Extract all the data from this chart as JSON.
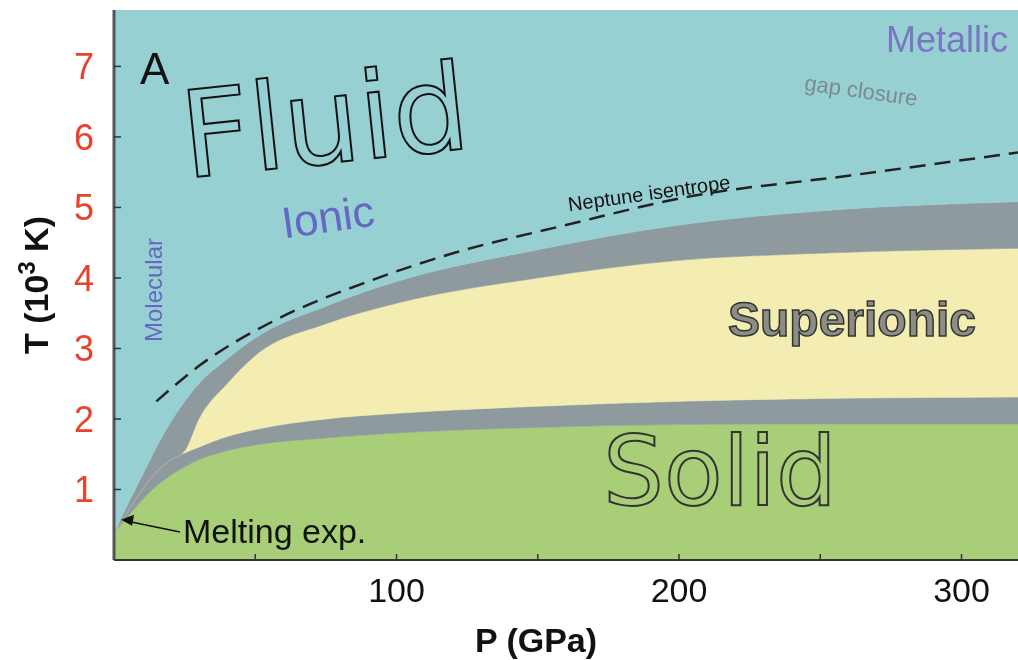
{
  "chart_data": {
    "type": "area",
    "stacked": true,
    "xlabel": "P (GPa)",
    "ylabel": "T (10$^{3}$ K)",
    "x": [
      0,
      5,
      10,
      15,
      20,
      25,
      30,
      40,
      50,
      75,
      100,
      150,
      200,
      250,
      320
    ],
    "series": [
      {
        "color": "#a8cf78",
        "values": [
          0.38,
          0.62,
          0.85,
          1.05,
          1.2,
          1.32,
          1.42,
          1.55,
          1.63,
          1.73,
          1.8,
          1.88,
          1.92,
          1.93,
          1.93
        ]
      },
      {
        "color": "#8f9a9e",
        "values": [
          0,
          0.08,
          0.15,
          0.2,
          0.22,
          0.2,
          0.18,
          0.2,
          0.22,
          0.27,
          0.28,
          0.3,
          0.33,
          0.36,
          0.38
        ]
      },
      {
        "color": "#f3edb2",
        "values": [
          0,
          0,
          0,
          0,
          0,
          0.03,
          0.4,
          0.75,
          1.05,
          1.35,
          1.56,
          1.82,
          2.0,
          2.06,
          2.11
        ]
      },
      {
        "color": "#8f9a9e",
        "values": [
          0,
          0.1,
          0.2,
          0.35,
          0.53,
          0.7,
          0.5,
          0.35,
          0.25,
          0.25,
          0.31,
          0.4,
          0.5,
          0.6,
          0.66
        ]
      },
      {
        "color": "#97d0d2",
        "values": [
          7.42,
          7.0,
          6.6,
          6.2,
          5.85,
          5.55,
          5.3,
          4.95,
          4.65,
          4.2,
          3.85,
          3.4,
          3.05,
          2.85,
          2.72
        ]
      },
      {
        "type": "line",
        "color": "#222222",
        "line_style": "dashed",
        "x": [
          15,
          30,
          57,
          90,
          120,
          160,
          203,
          260,
          320
        ],
        "values": [
          2.25,
          2.75,
          3.4,
          3.95,
          4.35,
          4.75,
          5.15,
          5.45,
          5.78
        ]
      }
    ],
    "xlim": [
      0,
      320
    ],
    "ylim": [
      0,
      7.8
    ],
    "xticks": [
      {
        "value": 50,
        "label": null
      },
      100,
      {
        "value": 150,
        "label": null
      },
      200,
      {
        "value": 250,
        "label": null
      },
      300
    ],
    "yticks": [
      1,
      2,
      3,
      4,
      5,
      6,
      7
    ],
    "annotations": [
      "A",
      "Fluid",
      "Metallic",
      "gap closure",
      "Ionic",
      "Molecular",
      "Neptune isentrope",
      "Superionic",
      "Solid",
      {
        "text": "Melting exp.",
        "x": 2.5,
        "y": 0.57
      }
    ]
  }
}
